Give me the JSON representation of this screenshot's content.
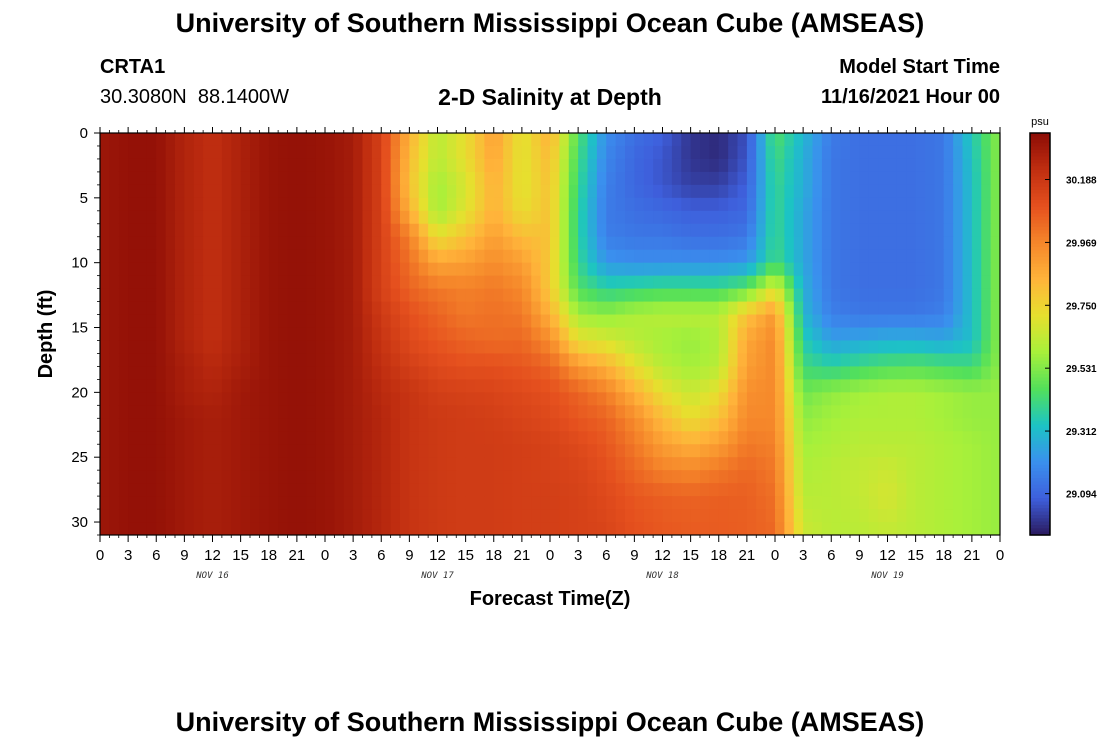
{
  "header": {
    "title": "University of Southern Mississippi Ocean Cube (AMSEAS)",
    "station": "CRTA1",
    "coords": "30.3080N  88.1400W",
    "subtitle": "2-D Salinity at Depth",
    "model_start_label": "Model Start Time",
    "model_start_value": "11/16/2021 Hour 00"
  },
  "footer": {
    "title": "University of Southern Mississippi Ocean Cube (AMSEAS)"
  },
  "chart_data": {
    "type": "heatmap",
    "title": "2-D Salinity at Depth",
    "xlabel": "Forecast Time(Z)",
    "ylabel": "Depth (ft)",
    "units": "psu",
    "x_hours_range": [
      0,
      96
    ],
    "x_tick_labels": [
      "0",
      "3",
      "6",
      "9",
      "12",
      "15",
      "18",
      "21",
      "0",
      "3",
      "6",
      "9",
      "12",
      "15",
      "18",
      "21",
      "0",
      "3",
      "6",
      "9",
      "12",
      "15",
      "18",
      "21",
      "0",
      "3",
      "6",
      "9",
      "12",
      "15",
      "18",
      "21",
      "0"
    ],
    "day_labels": [
      {
        "label": "NOV 16",
        "hour": 12
      },
      {
        "label": "NOV 17",
        "hour": 36
      },
      {
        "label": "NOV 18",
        "hour": 60
      },
      {
        "label": "NOV 19",
        "hour": 84
      }
    ],
    "y_range": [
      0,
      31
    ],
    "y_ticks": [
      0,
      5,
      10,
      15,
      20,
      25,
      30
    ],
    "colorbar": {
      "min": 28.95,
      "max": 30.35,
      "ticks": [
        30.188,
        29.969,
        29.75,
        29.531,
        29.312,
        29.094
      ],
      "tick_labels": [
        "30.188",
        "29.969",
        "29.750",
        "29.531",
        "29.312",
        "29.094"
      ],
      "colors": [
        "#2a1a5e",
        "#3e5fdc",
        "#3a90ee",
        "#1cc4c4",
        "#53e05a",
        "#a8f03a",
        "#e6e02e",
        "#ffb43a",
        "#f5862a",
        "#e5501e",
        "#c02e10",
        "#8c0c05"
      ]
    },
    "grid_depths": [
      0,
      2,
      4,
      6,
      8,
      10,
      12,
      14,
      16,
      18,
      20,
      22,
      24,
      26,
      28,
      31
    ],
    "grid_hours": [
      0,
      3,
      6,
      9,
      12,
      15,
      18,
      21,
      24,
      27,
      30,
      33,
      36,
      39,
      42,
      45,
      48,
      51,
      54,
      57,
      60,
      63,
      66,
      69,
      72,
      75,
      78,
      81,
      84,
      87,
      90,
      93,
      96
    ],
    "salinity": [
      [
        30.31,
        30.33,
        30.33,
        30.26,
        30.22,
        30.27,
        30.32,
        30.33,
        30.32,
        30.29,
        30.15,
        29.85,
        29.62,
        29.72,
        29.9,
        29.7,
        29.85,
        29.45,
        29.2,
        29.12,
        29.08,
        29.0,
        28.98,
        29.05,
        29.45,
        29.3,
        29.15,
        29.12,
        29.12,
        29.12,
        29.14,
        29.35,
        29.55
      ],
      [
        30.31,
        30.33,
        30.33,
        30.26,
        30.22,
        30.27,
        30.32,
        30.33,
        30.32,
        30.29,
        30.15,
        29.82,
        29.62,
        29.72,
        29.88,
        29.7,
        29.82,
        29.42,
        29.18,
        29.1,
        29.06,
        29.0,
        28.98,
        29.06,
        29.42,
        29.28,
        29.14,
        29.12,
        29.12,
        29.12,
        29.14,
        29.33,
        29.55
      ],
      [
        30.31,
        30.33,
        30.33,
        30.26,
        30.22,
        30.27,
        30.32,
        30.33,
        30.32,
        30.29,
        30.15,
        29.8,
        29.58,
        29.68,
        29.85,
        29.7,
        29.8,
        29.4,
        29.16,
        29.1,
        29.06,
        29.02,
        29.02,
        29.08,
        29.4,
        29.28,
        29.14,
        29.12,
        29.12,
        29.12,
        29.14,
        29.32,
        29.55
      ],
      [
        30.31,
        30.33,
        30.33,
        30.26,
        30.22,
        30.27,
        30.32,
        30.33,
        30.32,
        30.29,
        30.15,
        29.85,
        29.58,
        29.7,
        29.85,
        29.72,
        29.8,
        29.38,
        29.15,
        29.12,
        29.1,
        29.08,
        29.08,
        29.1,
        29.4,
        29.26,
        29.14,
        29.12,
        29.12,
        29.12,
        29.14,
        29.32,
        29.55
      ],
      [
        30.31,
        30.33,
        30.33,
        30.26,
        30.22,
        30.27,
        30.32,
        30.33,
        30.32,
        30.29,
        30.15,
        29.98,
        29.72,
        29.8,
        29.9,
        29.82,
        29.8,
        29.38,
        29.16,
        29.14,
        29.14,
        29.12,
        29.12,
        29.14,
        29.4,
        29.26,
        29.14,
        29.12,
        29.12,
        29.12,
        29.14,
        29.32,
        29.55
      ],
      [
        30.31,
        30.33,
        30.33,
        30.26,
        30.22,
        30.27,
        30.32,
        30.33,
        30.32,
        30.29,
        30.15,
        30.02,
        29.88,
        29.9,
        29.95,
        29.9,
        29.78,
        29.4,
        29.22,
        29.2,
        29.2,
        29.2,
        29.2,
        29.22,
        29.42,
        29.26,
        29.14,
        29.12,
        29.12,
        29.12,
        29.14,
        29.32,
        29.55
      ],
      [
        30.31,
        30.33,
        30.33,
        30.26,
        30.22,
        30.27,
        30.32,
        30.33,
        30.32,
        30.29,
        30.15,
        30.05,
        30.0,
        29.98,
        30.0,
        29.96,
        29.78,
        29.45,
        29.38,
        29.4,
        29.42,
        29.42,
        29.42,
        29.48,
        29.7,
        29.28,
        29.14,
        29.12,
        29.12,
        29.12,
        29.14,
        29.32,
        29.55
      ],
      [
        30.31,
        30.33,
        30.33,
        30.26,
        30.22,
        30.27,
        30.32,
        30.33,
        30.32,
        30.29,
        30.18,
        30.1,
        30.05,
        30.0,
        30.02,
        30.0,
        29.85,
        29.58,
        29.55,
        29.6,
        29.62,
        29.62,
        29.62,
        29.8,
        29.92,
        29.3,
        29.16,
        29.14,
        29.14,
        29.14,
        29.16,
        29.32,
        29.55
      ],
      [
        30.31,
        30.33,
        30.33,
        30.26,
        30.22,
        30.27,
        30.32,
        30.33,
        30.32,
        30.29,
        30.2,
        30.12,
        30.08,
        30.05,
        30.03,
        30.04,
        29.95,
        29.72,
        29.68,
        29.62,
        29.58,
        29.56,
        29.6,
        29.88,
        29.96,
        29.36,
        29.24,
        29.26,
        29.28,
        29.28,
        29.26,
        29.32,
        29.55
      ],
      [
        30.31,
        30.33,
        30.33,
        30.28,
        30.24,
        30.28,
        30.32,
        30.33,
        30.32,
        30.29,
        30.22,
        30.16,
        30.12,
        30.1,
        30.1,
        30.08,
        30.05,
        29.92,
        29.85,
        29.72,
        29.62,
        29.58,
        29.62,
        29.9,
        29.96,
        29.42,
        29.38,
        29.42,
        29.45,
        29.46,
        29.44,
        29.42,
        29.55
      ],
      [
        30.31,
        30.33,
        30.33,
        30.28,
        30.26,
        30.3,
        30.32,
        30.33,
        30.32,
        30.29,
        30.24,
        30.2,
        30.16,
        30.15,
        30.14,
        30.12,
        30.1,
        30.05,
        29.98,
        29.85,
        29.72,
        29.65,
        29.72,
        29.94,
        29.96,
        29.5,
        29.55,
        29.58,
        29.6,
        29.6,
        29.58,
        29.56,
        29.56
      ],
      [
        30.31,
        30.33,
        30.33,
        30.3,
        30.28,
        30.3,
        30.32,
        30.33,
        30.32,
        30.29,
        30.25,
        30.2,
        30.18,
        30.17,
        30.16,
        30.14,
        30.12,
        30.08,
        30.05,
        29.95,
        29.82,
        29.72,
        29.8,
        29.96,
        29.96,
        29.55,
        29.58,
        29.6,
        29.6,
        29.6,
        29.58,
        29.56,
        29.56
      ],
      [
        30.31,
        30.33,
        30.33,
        30.3,
        30.28,
        30.3,
        30.32,
        30.33,
        30.32,
        30.29,
        30.25,
        30.2,
        30.18,
        30.17,
        30.17,
        30.16,
        30.15,
        30.12,
        30.08,
        30.0,
        29.9,
        29.85,
        29.9,
        30.0,
        29.98,
        29.58,
        29.6,
        29.62,
        29.62,
        29.62,
        29.6,
        29.58,
        29.56
      ],
      [
        30.31,
        30.33,
        30.33,
        30.3,
        30.28,
        30.3,
        30.32,
        30.33,
        30.32,
        30.29,
        30.25,
        30.2,
        30.18,
        30.17,
        30.17,
        30.16,
        30.15,
        30.14,
        30.1,
        30.04,
        29.98,
        29.96,
        30.0,
        30.04,
        30.0,
        29.6,
        29.62,
        29.64,
        29.66,
        29.62,
        29.6,
        29.58,
        29.56
      ],
      [
        30.31,
        30.33,
        30.33,
        30.3,
        30.28,
        30.3,
        30.32,
        30.33,
        30.32,
        30.29,
        30.25,
        30.2,
        30.18,
        30.17,
        30.17,
        30.16,
        30.16,
        30.15,
        30.12,
        30.08,
        30.06,
        30.05,
        30.06,
        30.06,
        30.02,
        29.62,
        29.62,
        29.64,
        29.68,
        29.62,
        29.6,
        29.58,
        29.56
      ],
      [
        30.31,
        30.33,
        30.33,
        30.3,
        30.28,
        30.3,
        30.32,
        30.33,
        30.32,
        30.29,
        30.25,
        30.2,
        30.18,
        30.17,
        30.17,
        30.16,
        30.16,
        30.15,
        30.14,
        30.1,
        30.08,
        30.07,
        30.07,
        30.06,
        30.04,
        29.66,
        29.62,
        29.62,
        29.64,
        29.62,
        29.6,
        29.58,
        29.56
      ]
    ]
  }
}
